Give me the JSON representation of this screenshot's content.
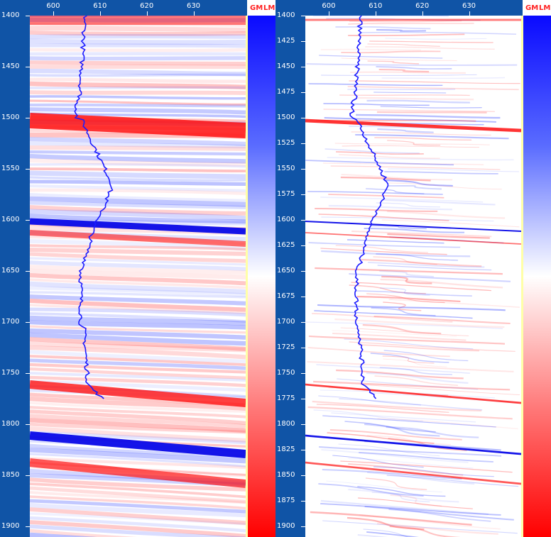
{
  "left_panel": {
    "x_ticks": [
      "600",
      "610",
      "620",
      "630"
    ],
    "y_ticks": [
      "1400",
      "1450",
      "1500",
      "1550",
      "1600",
      "1650",
      "1700",
      "1750",
      "1800",
      "1850",
      "1900"
    ],
    "colorbar_labels": [
      "GM",
      "LM"
    ]
  },
  "right_panel": {
    "x_ticks": [
      "600",
      "610",
      "620",
      "630"
    ],
    "y_ticks": [
      "1400",
      "1425",
      "1450",
      "1475",
      "1500",
      "1525",
      "1550",
      "1575",
      "1600",
      "1625",
      "1650",
      "1675",
      "1700",
      "1725",
      "1750",
      "1775",
      "1800",
      "1825",
      "1850",
      "1875",
      "1900"
    ],
    "colorbar_labels": [
      "GM",
      "LM"
    ]
  },
  "colors": {
    "axis_bg": "#1054a6",
    "positive": "#ff0000",
    "negative": "#0a0aff",
    "well_trace": "#1a1aff"
  }
}
